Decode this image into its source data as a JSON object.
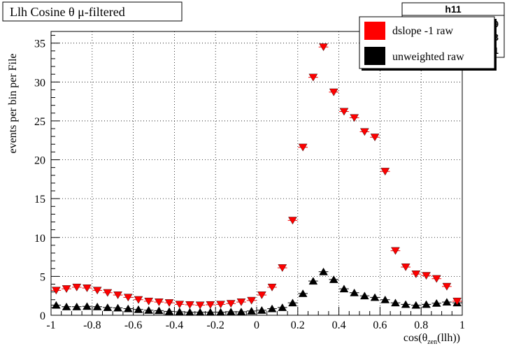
{
  "colors": {
    "series1": "#ff0000",
    "series2": "#000000",
    "frame": "#000000",
    "grid": "#000000"
  },
  "stats_box": {
    "title": "h11",
    "visible_values": [
      "89",
      "23",
      "01"
    ]
  },
  "chart_data": {
    "type": "scatter",
    "title": "Llh Cosine θ μ-filtered",
    "xlabel": "cos(θ_zen(llh))",
    "ylabel": "events per bin per File",
    "xlim": [
      -1,
      1
    ],
    "ylim": [
      0,
      36.5
    ],
    "x_ticks": [
      -1,
      -0.8,
      -0.6,
      -0.4,
      -0.2,
      0,
      0.2,
      0.4,
      0.6,
      0.8,
      1
    ],
    "x_tick_labels": [
      "-1",
      "-0.8",
      "-0.6",
      "-0.4",
      "-0.2",
      "0",
      "0.2",
      "0.4",
      "0.6",
      "0.8",
      "1"
    ],
    "y_ticks": [
      0,
      5,
      10,
      15,
      20,
      25,
      30,
      35
    ],
    "y_tick_labels": [
      "0",
      "5",
      "10",
      "15",
      "20",
      "25",
      "30",
      "35"
    ],
    "grid": true,
    "legend_position": "top-right",
    "x": [
      -0.975,
      -0.925,
      -0.875,
      -0.825,
      -0.775,
      -0.725,
      -0.675,
      -0.625,
      -0.575,
      -0.525,
      -0.475,
      -0.425,
      -0.375,
      -0.325,
      -0.275,
      -0.225,
      -0.175,
      -0.125,
      -0.075,
      -0.025,
      0.025,
      0.075,
      0.125,
      0.175,
      0.225,
      0.275,
      0.325,
      0.375,
      0.425,
      0.475,
      0.525,
      0.575,
      0.625,
      0.675,
      0.725,
      0.775,
      0.825,
      0.875,
      0.925,
      0.975
    ],
    "series": [
      {
        "name": "dslope -1 raw",
        "marker": "triangle-down",
        "values": [
          3.2,
          3.4,
          3.6,
          3.5,
          3.2,
          2.9,
          2.6,
          2.3,
          2.0,
          1.8,
          1.7,
          1.6,
          1.4,
          1.35,
          1.3,
          1.35,
          1.4,
          1.5,
          1.7,
          1.9,
          2.6,
          3.6,
          6.1,
          12.2,
          21.6,
          30.6,
          34.5,
          28.7,
          26.2,
          25.4,
          23.6,
          22.9,
          18.5,
          8.3,
          6.2,
          5.3,
          5.1,
          4.7,
          3.7,
          1.8
        ]
      },
      {
        "name": "unweighted raw",
        "marker": "triangle-up",
        "values": [
          1.3,
          1.1,
          1.1,
          1.15,
          1.1,
          1.0,
          0.95,
          0.85,
          0.75,
          0.65,
          0.6,
          0.5,
          0.45,
          0.4,
          0.4,
          0.4,
          0.4,
          0.45,
          0.45,
          0.55,
          0.65,
          0.85,
          1.0,
          1.6,
          2.8,
          4.4,
          5.6,
          4.6,
          3.4,
          2.9,
          2.5,
          2.3,
          2.0,
          1.6,
          1.4,
          1.3,
          1.4,
          1.55,
          1.7,
          1.6
        ]
      }
    ]
  }
}
